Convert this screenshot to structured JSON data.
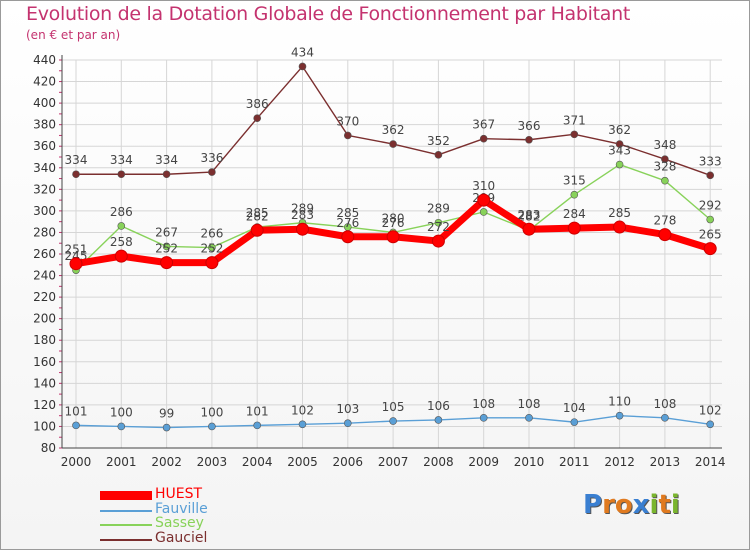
{
  "title": "Evolution de la Dotation Globale de Fonctionnement par Habitant",
  "subtitle": "(en € et par an)",
  "logo": {
    "text": "Proxiti",
    "letters": [
      "P",
      "r",
      "o",
      "x",
      "i",
      "t",
      "i"
    ],
    "colors": [
      "#3a7fd1",
      "#e07a1f",
      "#e07a1f",
      "#3a7fd1",
      "#7ab52e",
      "#e07a1f",
      "#7ab52e"
    ]
  },
  "chart_data": {
    "type": "line",
    "x": [
      "2000",
      "2001",
      "2002",
      "2003",
      "2004",
      "2005",
      "2006",
      "2007",
      "2008",
      "2009",
      "2010",
      "2011",
      "2012",
      "2013",
      "2014"
    ],
    "ylim": [
      80,
      440
    ],
    "yticks": [
      80,
      100,
      120,
      140,
      160,
      180,
      200,
      220,
      240,
      260,
      280,
      300,
      320,
      340,
      360,
      380,
      400,
      420,
      440
    ],
    "grid": true,
    "legend_position": "bottom-left",
    "series": [
      {
        "name": "Gauciel",
        "color": "#7b2f2f",
        "values": [
          334,
          334,
          334,
          336,
          386,
          434,
          370,
          362,
          352,
          367,
          366,
          371,
          362,
          348,
          333
        ],
        "labels": [
          "334",
          "334",
          "334",
          "336",
          "386",
          "434",
          "370",
          "362",
          "352",
          "367",
          "366",
          "371",
          "362",
          "348",
          "333"
        ]
      },
      {
        "name": "Sassey",
        "color": "#88d25a",
        "values": [
          245,
          286,
          267,
          266,
          285,
          289,
          285,
          280,
          289,
          299,
          282,
          315,
          343,
          328,
          292
        ],
        "labels": [
          "245",
          "286",
          "267",
          "266",
          "285",
          "289",
          "285",
          "280",
          "289",
          "299",
          "282",
          "315",
          "343",
          "328",
          "292"
        ]
      },
      {
        "name": "HUEST",
        "color": "#ff0000",
        "values": [
          251,
          258,
          252,
          252,
          282,
          283,
          276,
          276,
          272,
          310,
          283,
          284,
          285,
          278,
          265
        ],
        "labels": [
          "251",
          "258",
          "252",
          "252",
          "282",
          "283",
          "276",
          "276",
          "272",
          "310",
          "283",
          "284",
          "285",
          "278",
          "265"
        ]
      },
      {
        "name": "Fauville",
        "color": "#5a9fd6",
        "values": [
          101,
          100,
          99,
          100,
          101,
          102,
          103,
          105,
          106,
          108,
          108,
          104,
          110,
          108,
          102
        ],
        "labels": [
          "101",
          "100",
          "99",
          "100",
          "101",
          "102",
          "103",
          "105",
          "106",
          "108",
          "108",
          "104",
          "110",
          "108",
          "102"
        ]
      }
    ],
    "legend": [
      {
        "name": "HUEST",
        "color": "#ff0000",
        "thick": true
      },
      {
        "name": "Fauville",
        "color": "#5a9fd6",
        "thick": false
      },
      {
        "name": "Sassey",
        "color": "#88d25a",
        "thick": false
      },
      {
        "name": "Gauciel",
        "color": "#7b2f2f",
        "thick": false
      }
    ]
  }
}
